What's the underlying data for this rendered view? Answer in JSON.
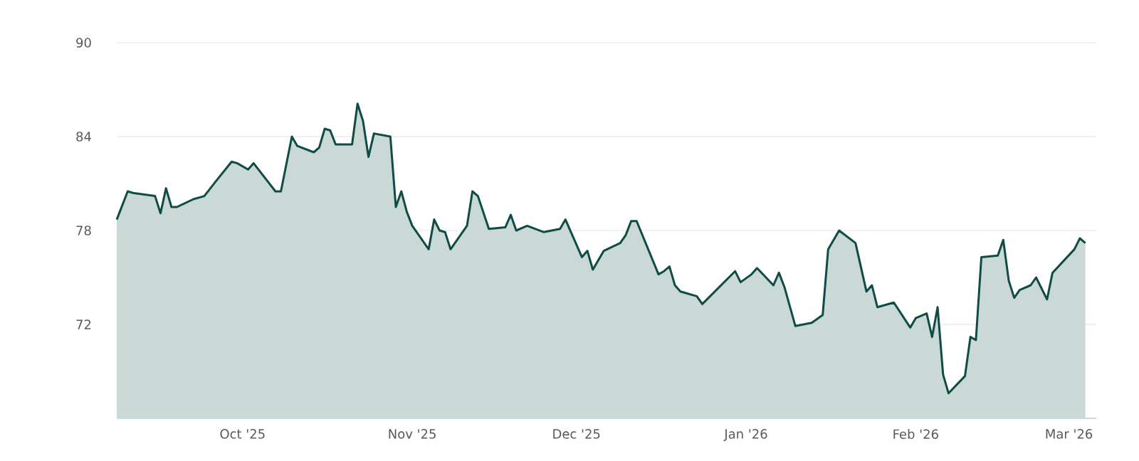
{
  "chart_data": {
    "type": "area",
    "color": "#0f4c45",
    "grid": "y",
    "ylim": [
      66,
      90
    ],
    "yticks": [
      72,
      78,
      84,
      90
    ],
    "xlim": [
      "2025-09-08",
      "2026-03-06"
    ],
    "xticks": [
      {
        "value": "2025-10-01",
        "label": "Oct '25"
      },
      {
        "value": "2025-11-01",
        "label": "Nov '25"
      },
      {
        "value": "2025-12-01",
        "label": "Dec '25"
      },
      {
        "value": "2026-01-01",
        "label": "Jan '26"
      },
      {
        "value": "2026-02-01",
        "label": "Feb '26"
      },
      {
        "value": "2026-03-01",
        "label": "Mar '26"
      }
    ],
    "x": [
      "2025-09-08",
      "2025-09-10",
      "2025-09-11",
      "2025-09-15",
      "2025-09-16",
      "2025-09-17",
      "2025-09-18",
      "2025-09-19",
      "2025-09-22",
      "2025-09-24",
      "2025-09-26",
      "2025-09-29",
      "2025-09-30",
      "2025-10-02",
      "2025-10-03",
      "2025-10-07",
      "2025-10-08",
      "2025-10-10",
      "2025-10-11",
      "2025-10-14",
      "2025-10-15",
      "2025-10-16",
      "2025-10-17",
      "2025-10-18",
      "2025-10-21",
      "2025-10-22",
      "2025-10-23",
      "2025-10-24",
      "2025-10-25",
      "2025-10-28",
      "2025-10-29",
      "2025-10-30",
      "2025-10-31",
      "2025-11-01",
      "2025-11-04",
      "2025-11-05",
      "2025-11-06",
      "2025-11-07",
      "2025-11-08",
      "2025-11-11",
      "2025-11-12",
      "2025-11-13",
      "2025-11-15",
      "2025-11-18",
      "2025-11-19",
      "2025-11-20",
      "2025-11-22",
      "2025-11-25",
      "2025-11-28",
      "2025-11-29",
      "2025-12-02",
      "2025-12-03",
      "2025-12-04",
      "2025-12-06",
      "2025-12-09",
      "2025-12-10",
      "2025-12-11",
      "2025-12-12",
      "2025-12-16",
      "2025-12-17",
      "2025-12-18",
      "2025-12-19",
      "2025-12-20",
      "2025-12-23",
      "2025-12-24",
      "2025-12-30",
      "2025-12-31",
      "2026-01-02",
      "2026-01-03",
      "2026-01-06",
      "2026-01-07",
      "2026-01-08",
      "2026-01-10",
      "2026-01-13",
      "2026-01-15",
      "2026-01-16",
      "2026-01-18",
      "2026-01-21",
      "2026-01-23",
      "2026-01-24",
      "2026-01-25",
      "2026-01-28",
      "2026-01-31",
      "2026-02-01",
      "2026-02-03",
      "2026-02-04",
      "2026-02-05",
      "2026-02-06",
      "2026-02-07",
      "2026-02-10",
      "2026-02-11",
      "2026-02-12",
      "2026-02-13",
      "2026-02-16",
      "2026-02-17",
      "2026-02-18",
      "2026-02-19",
      "2026-02-20",
      "2026-02-22",
      "2026-02-23",
      "2026-02-25",
      "2026-02-26",
      "2026-03-02",
      "2026-03-03",
      "2026-03-04"
    ],
    "values": [
      78.7,
      80.5,
      80.4,
      80.2,
      79.1,
      80.7,
      79.5,
      79.5,
      80.0,
      80.2,
      81.1,
      82.4,
      82.3,
      81.9,
      82.3,
      80.5,
      80.5,
      84.0,
      83.4,
      83.0,
      83.3,
      84.5,
      84.4,
      83.5,
      83.5,
      86.1,
      85.0,
      82.7,
      84.2,
      84.0,
      79.5,
      80.5,
      79.2,
      78.3,
      76.8,
      78.7,
      78.0,
      77.9,
      76.8,
      78.3,
      80.5,
      80.2,
      78.1,
      78.2,
      79.0,
      78.0,
      78.3,
      77.9,
      78.1,
      78.7,
      76.3,
      76.7,
      75.5,
      76.7,
      77.2,
      77.7,
      78.6,
      78.6,
      75.2,
      75.4,
      75.7,
      74.5,
      74.1,
      73.8,
      73.3,
      75.4,
      74.7,
      75.2,
      75.6,
      74.5,
      75.3,
      74.4,
      71.9,
      72.1,
      72.6,
      76.8,
      78.0,
      77.2,
      74.1,
      74.5,
      73.1,
      73.4,
      71.8,
      72.4,
      72.7,
      71.2,
      73.1,
      68.8,
      67.6,
      68.7,
      71.2,
      71.0,
      76.3,
      76.4,
      77.4,
      74.8,
      73.7,
      74.2,
      74.5,
      75.0,
      73.6,
      75.3,
      76.8,
      77.5,
      77.2
    ]
  }
}
